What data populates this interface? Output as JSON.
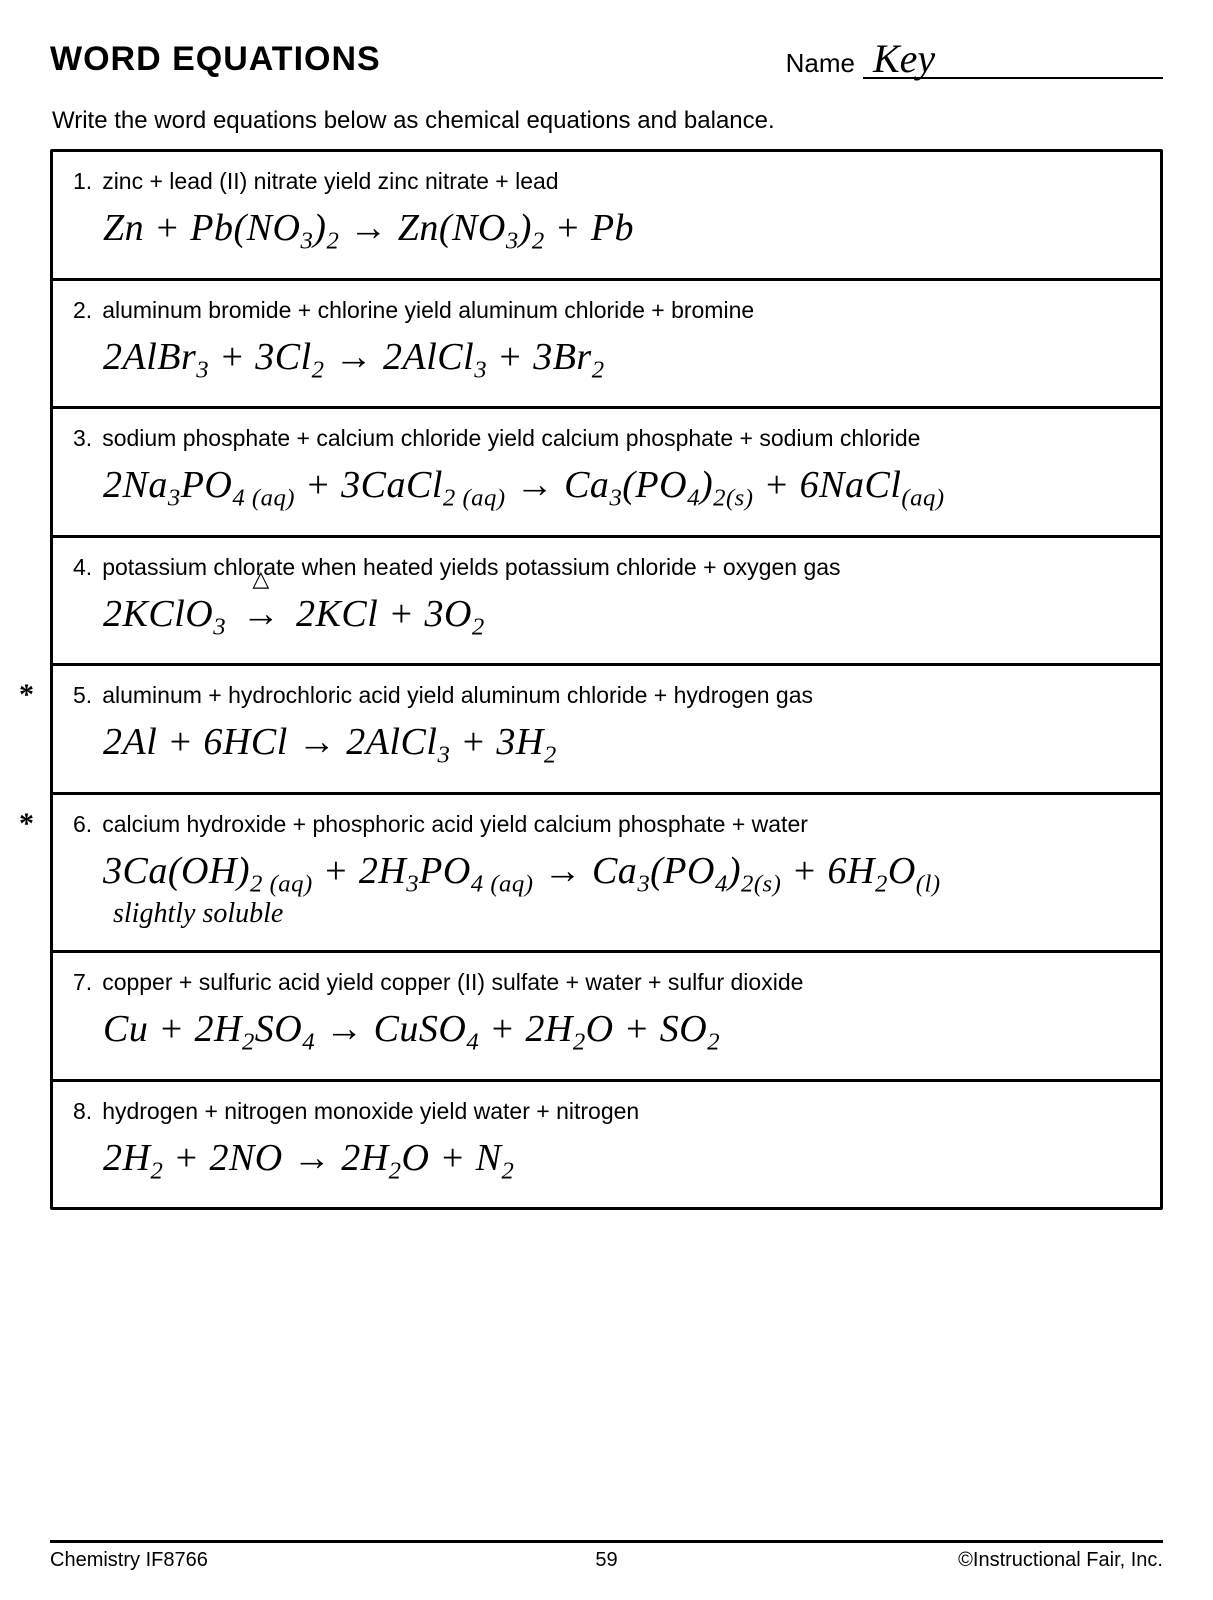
{
  "header": {
    "title": "WORD EQUATIONS",
    "name_label": "Name",
    "name_value": "Key"
  },
  "instructions": "Write the word equations below as chemical equations and balance.",
  "problems": [
    {
      "num": "1.",
      "prompt": "zinc + lead (II) nitrate yield zinc nitrate + lead",
      "answer_html": "Zn + Pb(NO<sub>3</sub>)<sub>2</sub> → Zn(NO<sub>3</sub>)<sub>2</sub> + Pb",
      "star": false
    },
    {
      "num": "2.",
      "prompt": "aluminum bromide + chlorine yield aluminum chloride + bromine",
      "answer_html": "2AlBr<sub>3</sub> + 3Cl<sub>2</sub> → 2AlCl<sub>3</sub> + 3Br<sub>2</sub>",
      "star": false
    },
    {
      "num": "3.",
      "prompt": "sodium phosphate + calcium chloride yield calcium phosphate + sodium chloride",
      "answer_html": "2Na<sub>3</sub>PO<sub>4 (aq)</sub> + 3CaCl<sub>2 (aq)</sub> → Ca<sub>3</sub>(PO<sub>4</sub>)<sub>2(s)</sub> + 6NaCl<sub>(aq)</sub>",
      "star": false
    },
    {
      "num": "4.",
      "prompt": "potassium chlorate when heated yields potassium chloride + oxygen gas",
      "answer_html": "2KClO<sub>3</sub> <span class=\"delta\">→</span> 2KCl + 3O<sub>2</sub>",
      "star": false
    },
    {
      "num": "5.",
      "prompt": "aluminum + hydrochloric acid yield aluminum chloride + hydrogen gas",
      "answer_html": "2Al + 6HCl → 2AlCl<sub>3</sub> + 3H<sub>2</sub>",
      "star": true
    },
    {
      "num": "6.",
      "prompt": "calcium hydroxide + phosphoric acid yield calcium phosphate + water",
      "answer_html": "3Ca(OH)<sub>2 (aq)</sub> + 2H<sub>3</sub>PO<sub>4 (aq)</sub> → Ca<sub>3</sub>(PO<sub>4</sub>)<sub>2(s)</sub> + 6H<sub>2</sub>O<sub>(l)</sub>",
      "note": "slightly soluble",
      "star": true
    },
    {
      "num": "7.",
      "prompt": "copper + sulfuric acid yield copper (II) sulfate + water + sulfur dioxide",
      "answer_html": "Cu + 2H<sub>2</sub>SO<sub>4</sub> → CuSO<sub>4</sub> + 2H<sub>2</sub>O + SO<sub>2</sub>",
      "star": false
    },
    {
      "num": "8.",
      "prompt": "hydrogen + nitrogen monoxide yield water + nitrogen",
      "answer_html": "2H<sub>2</sub> + 2NO → 2H<sub>2</sub>O + N<sub>2</sub>",
      "star": false
    }
  ],
  "footer": {
    "left": "Chemistry IF8766",
    "page": "59",
    "right": "©Instructional Fair, Inc."
  },
  "colors": {
    "text": "#000000",
    "background": "#ffffff",
    "border": "#000000"
  }
}
